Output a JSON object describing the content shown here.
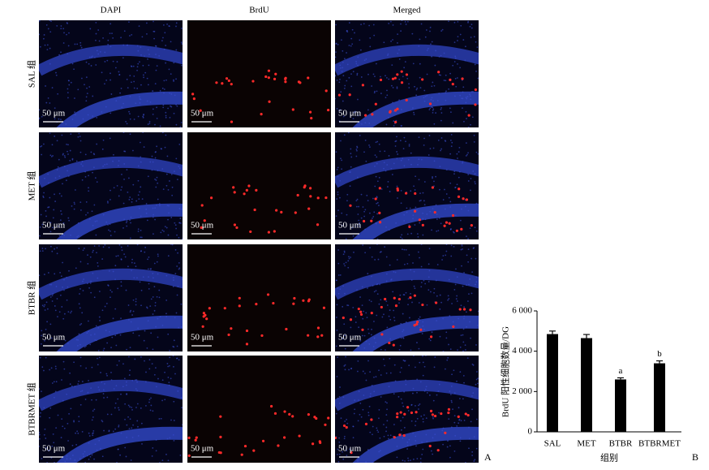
{
  "panel_A": {
    "columns": [
      "DAPI",
      "BrdU",
      "Merged"
    ],
    "rows": [
      "SAL 组",
      "MET 组",
      "BTBR 组",
      "BTBRMET 组"
    ],
    "scale_label": "50 μm",
    "panel_label": "A"
  },
  "chart_data": {
    "type": "bar",
    "panel_label": "B",
    "ylabel": "BrdU 阳性细胞数量/DG",
    "xlabel": "组别",
    "categories": [
      "SAL",
      "MET",
      "BTBR",
      "BTBRMET"
    ],
    "values": [
      4850,
      4650,
      2600,
      3400
    ],
    "errors": [
      150,
      180,
      80,
      120
    ],
    "bar_letters": [
      null,
      null,
      "a",
      "b"
    ],
    "color": "#000000",
    "ylim": [
      0,
      6000
    ],
    "yticks": [
      {
        "value": 0,
        "label": "0"
      },
      {
        "value": 2000,
        "label": "2 000"
      },
      {
        "value": 4000,
        "label": "4 000"
      },
      {
        "value": 6000,
        "label": "6 000"
      }
    ]
  }
}
